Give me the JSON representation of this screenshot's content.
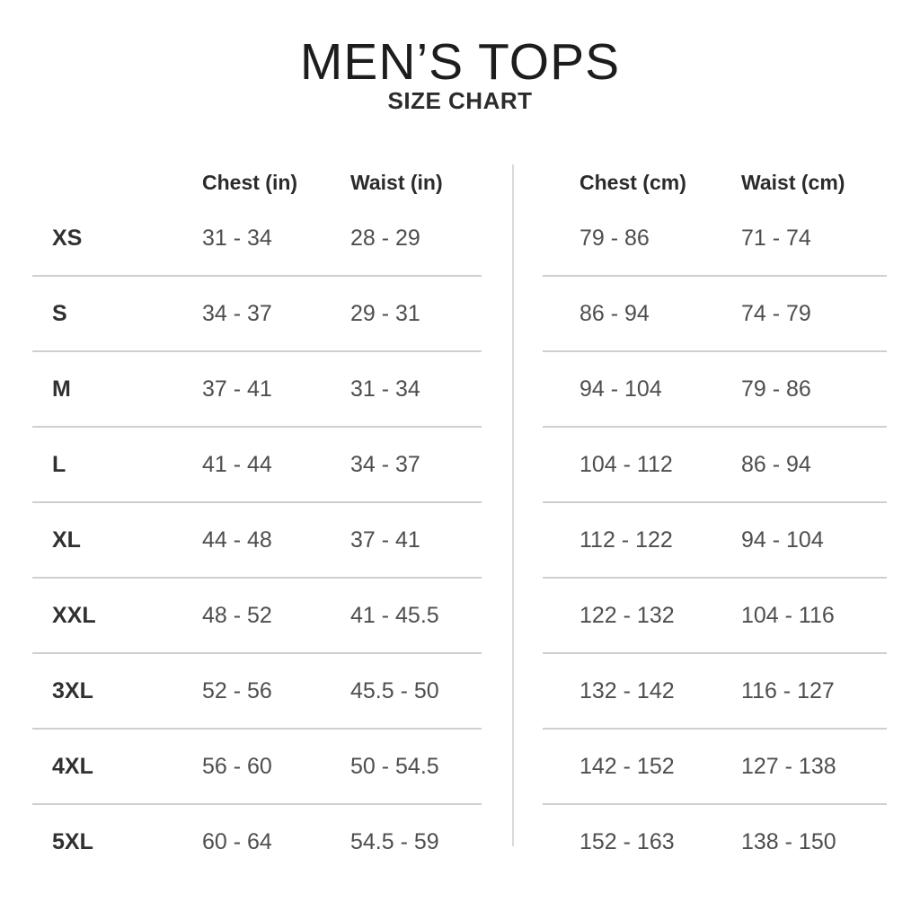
{
  "colors": {
    "background": "#ffffff",
    "title_text": "#1d1d1d",
    "header_text": "#2b2b2b",
    "value_text": "#4e4e4e",
    "row_divider": "#cfcfcf",
    "vertical_divider": "#d9d9d9"
  },
  "chart_data": {
    "type": "table",
    "title": "MEN’S TOPS",
    "subtitle": "SIZE CHART",
    "layout": "two tables side by side separated by vertical divider; left table imperial (in), right table metric (cm); grid off except light horizontal row separators",
    "headers": {
      "chest_in": "Chest (in)",
      "waist_in": "Waist (in)",
      "chest_cm": "Chest (cm)",
      "waist_cm": "Waist (cm)"
    },
    "rows": [
      {
        "size": "XS",
        "chest_in": "31 - 34",
        "waist_in": "28 - 29",
        "chest_cm": "79 - 86",
        "waist_cm": "71 - 74"
      },
      {
        "size": "S",
        "chest_in": "34 - 37",
        "waist_in": "29 - 31",
        "chest_cm": "86 - 94",
        "waist_cm": "74 - 79"
      },
      {
        "size": "M",
        "chest_in": "37 - 41",
        "waist_in": "31 - 34",
        "chest_cm": "94 - 104",
        "waist_cm": "79 - 86"
      },
      {
        "size": "L",
        "chest_in": "41 - 44",
        "waist_in": "34 - 37",
        "chest_cm": "104 - 112",
        "waist_cm": "86 - 94"
      },
      {
        "size": "XL",
        "chest_in": "44 - 48",
        "waist_in": "37 - 41",
        "chest_cm": "112 - 122",
        "waist_cm": "94 - 104"
      },
      {
        "size": "XXL",
        "chest_in": "48 - 52",
        "waist_in": "41 - 45.5",
        "chest_cm": "122 - 132",
        "waist_cm": "104 - 116"
      },
      {
        "size": "3XL",
        "chest_in": "52 - 56",
        "waist_in": "45.5 - 50",
        "chest_cm": "132 - 142",
        "waist_cm": "116 - 127"
      },
      {
        "size": "4XL",
        "chest_in": "56 - 60",
        "waist_in": "50 - 54.5",
        "chest_cm": "142 - 152",
        "waist_cm": "127 - 138"
      },
      {
        "size": "5XL",
        "chest_in": "60 - 64",
        "waist_in": "54.5 - 59",
        "chest_cm": "152 - 163",
        "waist_cm": "138 - 150"
      }
    ]
  }
}
